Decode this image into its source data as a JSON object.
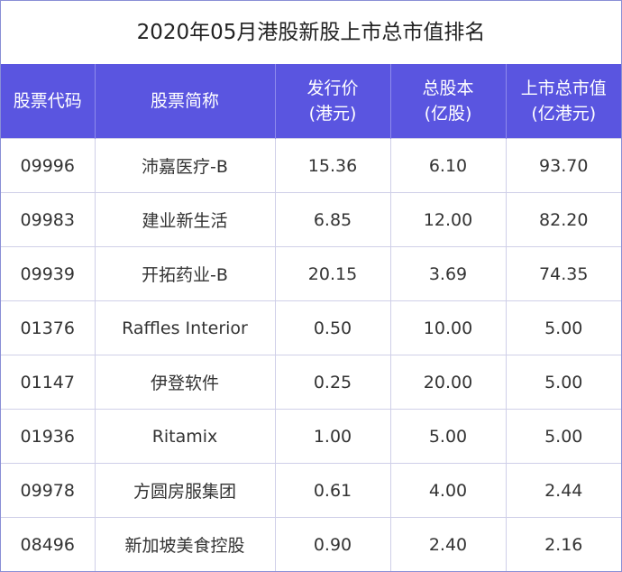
{
  "title": "2020年05月港股新股上市总市值排名",
  "headers": [
    {
      "line1": "股票代码",
      "line2": ""
    },
    {
      "line1": "股票简称",
      "line2": ""
    },
    {
      "line1": "发行价",
      "line2": "(港元)"
    },
    {
      "line1": "总股本",
      "line2": "(亿股)"
    },
    {
      "line1": "上市总市值",
      "line2": "(亿港元)"
    }
  ],
  "rows": [
    [
      "09996",
      "沛嘉医疗-B",
      "15.36",
      "6.10",
      "93.70"
    ],
    [
      "09983",
      "建业新生活",
      "6.85",
      "12.00",
      "82.20"
    ],
    [
      "09939",
      "开拓药业-B",
      "20.15",
      "3.69",
      "74.35"
    ],
    [
      "01376",
      "Raffles Interior",
      "0.50",
      "10.00",
      "5.00"
    ],
    [
      "01147",
      "伊登软件",
      "0.25",
      "20.00",
      "5.00"
    ],
    [
      "01936",
      "Ritamix",
      "1.00",
      "5.00",
      "5.00"
    ],
    [
      "09978",
      "方圆房服集团",
      "0.61",
      "4.00",
      "2.44"
    ],
    [
      "08496",
      "新加坡美食控股",
      "0.90",
      "2.40",
      "2.16"
    ]
  ]
}
